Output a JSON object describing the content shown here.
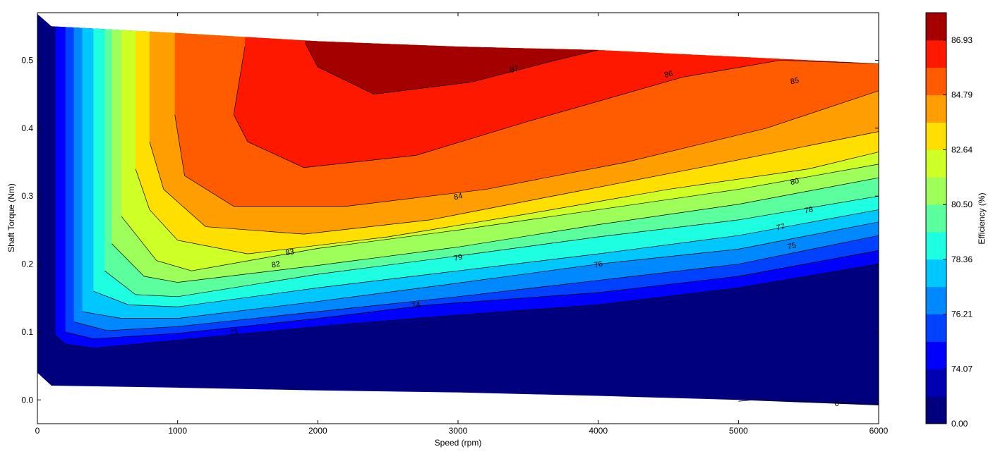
{
  "chart_data": {
    "type": "contour",
    "xlabel": "Speed  (rpm)",
    "ylabel": "Shaft Torque  (Nm)",
    "colorbar_label": "Efficiency (%)",
    "xlim": [
      0,
      6000
    ],
    "ylim": [
      -0.035,
      0.57
    ],
    "xticks": [
      "0",
      "1000",
      "2000",
      "3000",
      "4000",
      "5000",
      "6000"
    ],
    "yticks": [
      "0.0",
      "0.1",
      "0.2",
      "0.3",
      "0.4",
      "0.5"
    ],
    "colorbar": {
      "ticks": [
        "0.00",
        "74.07",
        "76.21",
        "78.36",
        "80.50",
        "82.64",
        "84.79",
        "86.93"
      ],
      "colors": [
        "#00007f",
        "#0000b2",
        "#0000ff",
        "#0042ff",
        "#0088ff",
        "#00c8ff",
        "#1dffe0",
        "#5cff9e",
        "#9eff5b",
        "#ceff27",
        "#ffdf00",
        "#ff9e00",
        "#ff5b00",
        "#ff1800",
        "#a50000"
      ]
    },
    "contour_levels": [
      {
        "level": 73,
        "label": "73",
        "color": "#0000ff",
        "points": [
          [
            130,
            0.095
          ],
          [
            200,
            0.082
          ],
          [
            400,
            0.076
          ],
          [
            1000,
            0.088
          ],
          [
            2000,
            0.108
          ],
          [
            3000,
            0.125
          ],
          [
            4000,
            0.14
          ],
          [
            5000,
            0.165
          ],
          [
            6000,
            0.2
          ]
        ]
      },
      {
        "level": 74,
        "label": "74",
        "color": "#0042ff",
        "points": [
          [
            200,
            0.1
          ],
          [
            400,
            0.09
          ],
          [
            1000,
            0.098
          ],
          [
            2000,
            0.12
          ],
          [
            2800,
            0.14
          ],
          [
            4000,
            0.158
          ],
          [
            5000,
            0.182
          ],
          [
            6000,
            0.22
          ]
        ]
      },
      {
        "level": 75,
        "label": "75",
        "color": "#0088ff",
        "points": [
          [
            260,
            0.115
          ],
          [
            500,
            0.102
          ],
          [
            1000,
            0.108
          ],
          [
            2000,
            0.13
          ],
          [
            3000,
            0.152
          ],
          [
            4000,
            0.176
          ],
          [
            5000,
            0.2
          ],
          [
            6000,
            0.242
          ]
        ]
      },
      {
        "level": 76,
        "label": "76",
        "color": "#00c8ff",
        "points": [
          [
            320,
            0.13
          ],
          [
            600,
            0.12
          ],
          [
            1000,
            0.12
          ],
          [
            2000,
            0.145
          ],
          [
            3000,
            0.172
          ],
          [
            4000,
            0.2
          ],
          [
            5000,
            0.222
          ],
          [
            6000,
            0.262
          ]
        ]
      },
      {
        "level": 77,
        "label": "77",
        "color": "#1dffe0",
        "points": [
          [
            400,
            0.16
          ],
          [
            650,
            0.14
          ],
          [
            1000,
            0.137
          ],
          [
            2000,
            0.165
          ],
          [
            3000,
            0.19
          ],
          [
            4000,
            0.215
          ],
          [
            5000,
            0.242
          ],
          [
            6000,
            0.28
          ]
        ]
      },
      {
        "level": 78,
        "label": "78",
        "color": "#5cff9e",
        "points": [
          [
            480,
            0.19
          ],
          [
            700,
            0.155
          ],
          [
            1000,
            0.152
          ],
          [
            2000,
            0.185
          ],
          [
            3000,
            0.212
          ],
          [
            4000,
            0.24
          ],
          [
            5000,
            0.265
          ],
          [
            6000,
            0.3
          ]
        ]
      },
      {
        "level": 79,
        "label": "79",
        "color": "#9eff5b",
        "points": [
          [
            530,
            0.23
          ],
          [
            760,
            0.182
          ],
          [
            1000,
            0.173
          ],
          [
            2000,
            0.198
          ],
          [
            3000,
            0.225
          ],
          [
            4000,
            0.258
          ],
          [
            5000,
            0.288
          ],
          [
            6000,
            0.327
          ]
        ]
      },
      {
        "level": 80,
        "label": "80",
        "color": "#ceff27",
        "points": [
          [
            600,
            0.27
          ],
          [
            850,
            0.205
          ],
          [
            1100,
            0.19
          ],
          [
            2000,
            0.223
          ],
          [
            3000,
            0.25
          ],
          [
            4000,
            0.28
          ],
          [
            5000,
            0.31
          ],
          [
            6000,
            0.347
          ]
        ]
      },
      {
        "level": 82,
        "label": "82",
        "color": "#ffdf00",
        "points": [
          [
            700,
            0.34
          ],
          [
            800,
            0.28
          ],
          [
            1000,
            0.235
          ],
          [
            1500,
            0.215
          ],
          [
            2500,
            0.24
          ],
          [
            3500,
            0.274
          ],
          [
            4500,
            0.31
          ],
          [
            5500,
            0.34
          ],
          [
            6000,
            0.365
          ]
        ]
      },
      {
        "level": 83,
        "label": "83",
        "color": "#ff9e00",
        "points": [
          [
            800,
            0.38
          ],
          [
            900,
            0.31
          ],
          [
            1200,
            0.255
          ],
          [
            1900,
            0.244
          ],
          [
            2800,
            0.265
          ],
          [
            3800,
            0.305
          ],
          [
            4800,
            0.345
          ],
          [
            6000,
            0.395
          ]
        ]
      },
      {
        "level": 84,
        "label": "84",
        "color": "#ff5b00",
        "points": [
          [
            980,
            0.42
          ],
          [
            1050,
            0.33
          ],
          [
            1400,
            0.285
          ],
          [
            2200,
            0.285
          ],
          [
            3200,
            0.31
          ],
          [
            4200,
            0.35
          ],
          [
            5200,
            0.4
          ],
          [
            6000,
            0.455
          ]
        ]
      },
      {
        "level": 86,
        "label": "86",
        "color": "#ff1800",
        "points": [
          [
            1480,
            0.52
          ],
          [
            1400,
            0.42
          ],
          [
            1500,
            0.38
          ],
          [
            1900,
            0.342
          ],
          [
            2700,
            0.36
          ],
          [
            3500,
            0.41
          ],
          [
            4600,
            0.475
          ],
          [
            5300,
            0.5
          ],
          [
            6000,
            0.495
          ]
        ]
      },
      {
        "level": 87,
        "label": "87",
        "color": "#a50000",
        "points": [
          [
            1910,
            0.525
          ],
          [
            2000,
            0.49
          ],
          [
            2400,
            0.45
          ],
          [
            3100,
            0.468
          ],
          [
            3700,
            0.5
          ],
          [
            4000,
            0.515
          ]
        ]
      }
    ],
    "inline_labels": [
      {
        "text": "73",
        "x": 1400,
        "y": 0.1
      },
      {
        "text": "74",
        "x": 2700,
        "y": 0.14
      },
      {
        "text": "75",
        "x": 5380,
        "y": 0.227
      },
      {
        "text": "76",
        "x": 4000,
        "y": 0.2
      },
      {
        "text": "77",
        "x": 5300,
        "y": 0.255
      },
      {
        "text": "78",
        "x": 5500,
        "y": 0.28
      },
      {
        "text": "79",
        "x": 3000,
        "y": 0.21
      },
      {
        "text": "80",
        "x": 5400,
        "y": 0.322
      },
      {
        "text": "82",
        "x": 1700,
        "y": 0.2
      },
      {
        "text": "83",
        "x": 1800,
        "y": 0.218
      },
      {
        "text": "84",
        "x": 3000,
        "y": 0.3
      },
      {
        "text": "85",
        "x": 5400,
        "y": 0.47
      },
      {
        "text": "86",
        "x": 4500,
        "y": 0.48
      },
      {
        "text": "87",
        "x": 3400,
        "y": 0.487
      },
      {
        "text": "0",
        "x": 5700,
        "y": -0.005
      }
    ]
  }
}
